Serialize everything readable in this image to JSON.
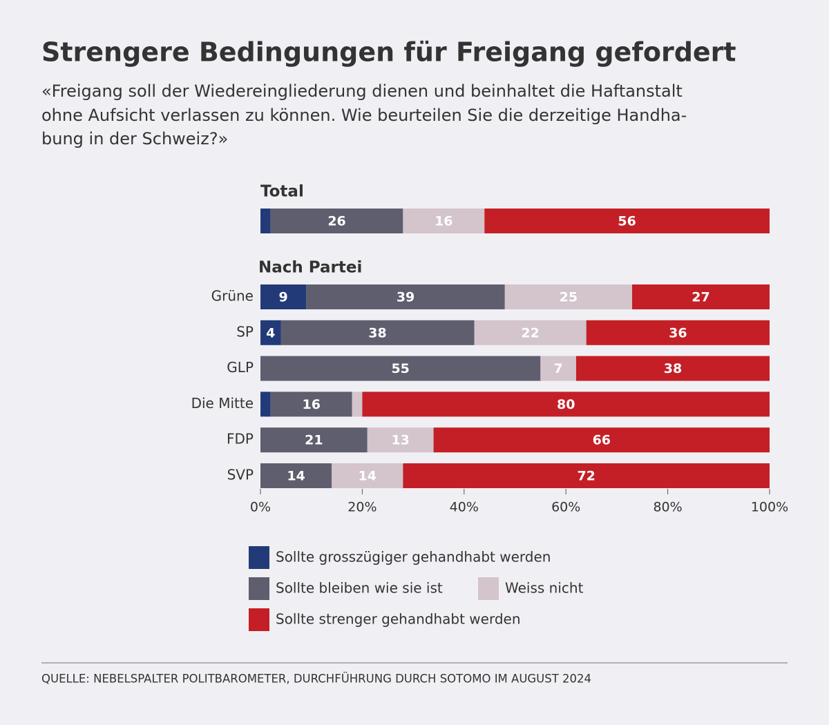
{
  "title": "Strengere Bedingungen für Freigang gefordert",
  "subtitle": [
    "«Freigang soll der Wiedereingliederung dienen und beinhaltet die Haftanstalt",
    "ohne Aufsicht verlassen zu können. Wie beurteilen Sie die derzeitige Handha-",
    "bung in der Schweiz?»"
  ],
  "source": "QUELLE: NEBELSPALTER POLITBAROMETER, DURCHFÜHRUNG DURCH SOTOMO IM AUGUST 2024",
  "chart_data": [
    {
      "type": "bar",
      "title": "Total",
      "xlim": [
        0,
        100
      ],
      "series": [
        {
          "color": "#233a78",
          "values": [
            2
          ],
          "value_labels": [
            null
          ]
        },
        {
          "color": "#5f5e6e",
          "values": [
            26
          ],
          "value_labels": [
            "26"
          ]
        },
        {
          "color": "#d4c4cc",
          "values": [
            16
          ],
          "value_labels": [
            "16"
          ]
        },
        {
          "color": "#c41f26",
          "values": [
            56
          ],
          "value_labels": [
            "56"
          ]
        }
      ]
    },
    {
      "type": "bar",
      "title": "Nach Partei",
      "categories": [
        "Grüne",
        "SP",
        "GLP",
        "Die Mitte",
        "FDP",
        "SVP"
      ],
      "xlim": [
        0,
        100
      ],
      "xticks": [
        {
          "value": 0,
          "label": "0%"
        },
        {
          "value": 20,
          "label": "20%"
        },
        {
          "value": 40,
          "label": "40%"
        },
        {
          "value": 60,
          "label": "60%"
        },
        {
          "value": 80,
          "label": "80%"
        },
        {
          "value": 100,
          "label": "100%"
        }
      ],
      "series": [
        {
          "name": "Sollte grosszügiger gehandhabt werden",
          "color": "#233a78",
          "values": [
            9,
            4,
            0,
            2,
            0,
            0
          ],
          "value_labels": [
            "9",
            "4",
            null,
            null,
            null,
            null
          ]
        },
        {
          "name": "Sollte bleiben wie sie ist",
          "color": "#5f5e6e",
          "values": [
            39,
            38,
            55,
            16,
            21,
            14
          ],
          "value_labels": [
            "39",
            "38",
            "55",
            "16",
            "21",
            "14"
          ]
        },
        {
          "name": "Weiss nicht",
          "color": "#d4c4cc",
          "values": [
            25,
            22,
            7,
            2,
            13,
            14
          ],
          "value_labels": [
            "25",
            "22",
            "7",
            null,
            "13",
            "14"
          ]
        },
        {
          "name": "Sollte strenger gehandhabt werden",
          "color": "#c41f26",
          "values": [
            27,
            36,
            38,
            80,
            66,
            72
          ],
          "value_labels": [
            "27",
            "36",
            "38",
            "80",
            "66",
            "72"
          ]
        }
      ]
    }
  ]
}
